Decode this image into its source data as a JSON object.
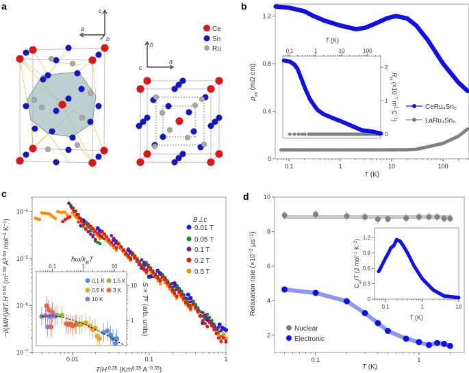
{
  "panels": {
    "a": "a",
    "b": "b",
    "c": "c",
    "d": "d"
  },
  "panel_a": {
    "legend": [
      {
        "label": "Ce",
        "color": "#e01515"
      },
      {
        "label": "Sn",
        "color": "#1515c8"
      },
      {
        "label": "Ru",
        "color": "#a8a8a8"
      }
    ],
    "axes_left": {
      "c": "c",
      "a": "a",
      "b": "b"
    },
    "axes_right": {
      "b": "b",
      "a": "a",
      "c": "c"
    }
  },
  "chart_data": [
    {
      "panel": "b",
      "type": "line",
      "xscale": "log",
      "xlim": [
        0.054,
        320
      ],
      "ylim": [
        0,
        1.3
      ],
      "xticks": [
        0.1,
        1,
        10,
        100
      ],
      "xticklabels": [
        "0.1",
        "1",
        "10",
        "100"
      ],
      "yticks": [
        0,
        0.4,
        0.8,
        1.2
      ],
      "yticklabels": [
        "0",
        "0.4",
        "0.8",
        "1.2"
      ],
      "xlabel": [
        [
          "T",
          "i"
        ],
        [
          " (K)",
          ""
        ]
      ],
      "ylabel": [
        [
          "ρ",
          "i"
        ],
        [
          "xx",
          "isub"
        ],
        [
          " (mΩ cm)",
          ""
        ]
      ],
      "legend_position": "right",
      "series": [
        {
          "name": "CeRu₄Sn₆",
          "color": "#1010e6",
          "x": [
            0.055,
            0.1,
            0.2,
            0.3,
            0.5,
            1,
            2,
            3,
            5,
            8,
            12,
            20,
            30,
            50,
            100,
            200,
            300
          ],
          "y": [
            1.28,
            1.27,
            1.24,
            1.2,
            1.16,
            1.12,
            1.09,
            1.1,
            1.14,
            1.18,
            1.2,
            1.18,
            1.12,
            1.0,
            0.8,
            0.64,
            0.57
          ]
        },
        {
          "name": "LaRu₄Sn₆",
          "color": "#808080",
          "x": [
            0.07,
            0.5,
            5,
            20,
            30,
            50,
            100,
            200,
            300
          ],
          "y": [
            0.075,
            0.075,
            0.075,
            0.076,
            0.08,
            0.1,
            0.13,
            0.19,
            0.25
          ]
        }
      ],
      "inset": {
        "type": "line",
        "xscale": "log",
        "xlim": [
          0.054,
          320
        ],
        "ylim": [
          -0.12,
          2.33
        ],
        "xticks": [
          0.1,
          1,
          10,
          100
        ],
        "xticklabels": [
          "0.1",
          "1",
          "10",
          "100"
        ],
        "yticks": [
          0,
          1,
          2
        ],
        "yticklabels": [
          "0",
          "1",
          "2"
        ],
        "xlabel": [
          [
            "T",
            "i"
          ],
          [
            " (K)",
            ""
          ]
        ],
        "ylabel": [
          [
            "R",
            "i"
          ],
          [
            "H",
            "isub"
          ],
          [
            " (×10",
            ""
          ],
          [
            "−7",
            "sup"
          ],
          [
            " m",
            ""
          ],
          [
            "3",
            "sup"
          ],
          [
            " C",
            ""
          ],
          [
            "−1",
            "sup"
          ],
          [
            ")",
            ""
          ]
        ],
        "series": [
          {
            "name": "CeRu₄Sn₆",
            "color": "#1010e6",
            "x": [
              0.06,
              0.1,
              0.15,
              0.2,
              0.3,
              0.4,
              0.6,
              0.8,
              1.2,
              2,
              4,
              10,
              30,
              60,
              150,
              320
            ],
            "y": [
              2.2,
              2.17,
              2.08,
              1.95,
              1.6,
              1.35,
              1.05,
              0.9,
              0.72,
              0.6,
              0.5,
              0.38,
              0.22,
              0.12,
              0.08,
              0.02
            ]
          },
          {
            "name": "LaRu₄Sn₆",
            "color": "#808080",
            "x": [
              0.1,
              0.15,
              0.22,
              0.3,
              0.38,
              0.55,
              1,
              3,
              10,
              30,
              100,
              320
            ],
            "y": [
              0,
              0,
              0,
              0,
              0,
              0,
              0,
              0,
              0,
              0,
              0,
              0
            ]
          }
        ]
      }
    },
    {
      "panel": "c",
      "type": "scatter",
      "xscale": "log",
      "yscale": "log",
      "xlim": [
        0.003,
        1.0
      ],
      "ylim": [
        1e-07,
        0.000205
      ],
      "xticks": [
        0.01,
        0.1,
        1
      ],
      "xticklabels": [
        "0.01",
        "0.1",
        "1"
      ],
      "yticks": [
        1e-07,
        1e-06,
        1e-05,
        0.0001
      ],
      "yticklabels": [
        [
          "10",
          "−7"
        ],
        [
          "10",
          "−6"
        ],
        [
          "10",
          "−5"
        ],
        [
          "10",
          "−4"
        ]
      ],
      "xlabel": [
        [
          "T",
          "i"
        ],
        [
          "/",
          ""
        ],
        [
          "H",
          "i"
        ],
        [
          " 0.35",
          "sup"
        ],
        [
          " (Km",
          ""
        ],
        [
          "0.35",
          "sup"
        ],
        [
          " A",
          ""
        ],
        [
          "−0.35",
          "sup"
        ],
        [
          ")",
          ""
        ]
      ],
      "ylabel": [
        [
          "−∂(",
          ""
        ],
        [
          "M",
          "i"
        ],
        [
          "/",
          ""
        ],
        [
          "H",
          "i"
        ],
        [
          ")/∂",
          ""
        ],
        [
          "T",
          "i"
        ],
        [
          ".",
          ""
        ],
        [
          "H",
          "i"
        ],
        [
          " 0.50",
          "sup"
        ],
        [
          " (m",
          ""
        ],
        [
          "2.50",
          "sup"
        ],
        [
          " A",
          ""
        ],
        [
          "0.50",
          "sup"
        ],
        [
          " mol",
          ""
        ],
        [
          "−1",
          "sup"
        ],
        [
          " K",
          ""
        ],
        [
          "−1",
          "sup"
        ],
        [
          ")",
          ""
        ]
      ],
      "legend_title": "B⊥c",
      "legend_position": "top-right",
      "series": [
        {
          "name": "0.01 T",
          "color": "#1020e8",
          "x": [
            0.013,
            0.02,
            0.03,
            0.05,
            0.08,
            0.1,
            0.12,
            0.2,
            0.3,
            0.4,
            0.5,
            0.7,
            0.9,
            1.0
          ],
          "y": [
            6e-05,
            4e-05,
            2.5e-05,
            1.4e-05,
            7.5e-06,
            4e-06,
            5e-06,
            2.8e-06,
            1.6e-06,
            1e-06,
            5e-07,
            4e-07,
            3e-07,
            3e-07
          ]
        },
        {
          "name": "0.05 T",
          "color": "#1a8a2a",
          "x": [
            0.0095,
            0.012,
            0.014,
            0.02,
            0.03,
            0.05,
            0.08,
            0.12,
            0.2,
            0.3,
            0.5,
            0.8,
            1.0
          ],
          "y": [
            0.00012,
            9e-05,
            5.5e-05,
            2.5e-05,
            2.4e-05,
            1.4e-05,
            8e-06,
            5e-06,
            2.6e-06,
            1.4e-06,
            6.5e-07,
            3e-07,
            1.7e-07
          ]
        },
        {
          "name": "0.1 T",
          "color": "#7a1a8a",
          "x": [
            0.009,
            0.012,
            0.015,
            0.02,
            0.03,
            0.05,
            0.08,
            0.12,
            0.2,
            0.3,
            0.5,
            0.8,
            1.0
          ],
          "y": [
            0.00014,
            7e-05,
            4e-05,
            3e-05,
            2.8e-05,
            1.5e-05,
            8e-06,
            5e-06,
            2.5e-06,
            1.3e-06,
            6e-07,
            3e-07,
            2e-07
          ]
        },
        {
          "name": "0.2 T",
          "color": "#ee1111",
          "x": [
            0.0075,
            0.01,
            0.015,
            0.02,
            0.03,
            0.05,
            0.08,
            0.12,
            0.2,
            0.3,
            0.5,
            0.8,
            1.0
          ],
          "y": [
            6e-05,
            0.0001,
            5e-05,
            4e-05,
            2.5e-05,
            1.3e-05,
            7e-06,
            4.5e-06,
            2.2e-06,
            1.2e-06,
            5e-07,
            2.2e-07,
            1.5e-07
          ]
        },
        {
          "name": "0.5 T",
          "color": "#ff8c00",
          "x": [
            0.0033,
            0.004,
            0.005,
            0.006,
            0.007,
            0.008,
            0.01,
            0.013,
            0.02,
            0.03,
            0.05,
            0.08,
            0.1,
            0.15,
            0.2,
            0.3,
            0.5,
            0.7,
            1.0
          ],
          "y": [
            7.5e-05,
            8e-05,
            9e-05,
            8.5e-05,
            9e-05,
            0.0001,
            8e-05,
            6e-05,
            3.5e-05,
            2.2e-05,
            1.2e-05,
            7e-06,
            5e-06,
            3e-06,
            2e-06,
            1.1e-06,
            5e-07,
            3e-07,
            1.8e-07
          ]
        }
      ],
      "inset": {
        "type": "scatter",
        "xscale": "log",
        "yscale": "log",
        "xlim": [
          0.03,
          25
        ],
        "ylim": [
          0.19,
          24.6
        ],
        "xticks": [
          0.1,
          1,
          10
        ],
        "xticklabels": [
          "0.1",
          "1",
          "10"
        ],
        "yticks": [
          1,
          10
        ],
        "yticklabels": [
          "1",
          "10"
        ],
        "xlabel": [
          [
            "ħω",
            "i"
          ],
          [
            "/",
            "i"
          ],
          [
            "k",
            "i"
          ],
          [
            "B",
            "isub"
          ],
          [
            "T",
            "i"
          ]
        ],
        "ylabel": [
          [
            "S",
            "i"
          ],
          [
            " × ",
            ""
          ],
          [
            "T",
            "i"
          ],
          [
            "α",
            "isup"
          ],
          [
            " (arb. units)",
            ""
          ]
        ],
        "fit": {
          "style": "dashed",
          "x": [
            0.045,
            0.1,
            0.2,
            0.5,
            1,
            2,
            5,
            10,
            20
          ],
          "y": [
            1.3,
            1.35,
            1.25,
            1.0,
            0.8,
            0.6,
            0.4,
            0.28,
            0.2
          ]
        },
        "series": [
          {
            "name": "0.1 K",
            "color": "#5b8ccf",
            "x": [
              4.5,
              6,
              7.5,
              9,
              11,
              12
            ],
            "y": [
              0.45,
              0.5,
              0.38,
              0.3,
              0.22,
              0.3
            ]
          },
          {
            "name": "1.5 K",
            "color": "#8cba3c",
            "x": [
              0.14,
              0.2,
              0.6,
              0.75
            ],
            "y": [
              1.4,
              1.4,
              0.8,
              0.75
            ]
          },
          {
            "name": "0.5 K",
            "color": "#e5a92a",
            "x": [
              0.9,
              1.2,
              1.6,
              2,
              2.4,
              2.8,
              3.3
            ],
            "y": [
              0.8,
              0.85,
              0.7,
              0.55,
              0.6,
              0.35,
              0.3
            ]
          },
          {
            "name": "3 K",
            "color": "#e8643c",
            "x": [
              0.065,
              0.075,
              0.09,
              0.1,
              0.28,
              0.32,
              0.38,
              0.45,
              0.55
            ],
            "y": [
              2.6,
              2.0,
              0.65,
              1.7,
              0.8,
              0.75,
              0.8,
              0.7,
              0.75
            ]
          },
          {
            "name": "10 K",
            "color": "#8e7cc3",
            "x": [
              0.045,
              0.06,
              0.07,
              0.08,
              0.095,
              0.12
            ],
            "y": [
              1.3,
              1.35,
              0.65,
              1.3,
              1.35,
              1.3
            ]
          }
        ]
      }
    },
    {
      "panel": "d",
      "type": "scatter",
      "xscale": "log",
      "xlim": [
        0.04,
        2.74
      ],
      "ylim": [
        1,
        10
      ],
      "xticks": [
        0.1,
        1
      ],
      "xticklabels": [
        "0.1",
        "1"
      ],
      "yticks": [
        2,
        4,
        6,
        8,
        10
      ],
      "yticklabels": [
        "2",
        "4",
        "6",
        "8",
        "10"
      ],
      "xlabel": [
        [
          "T",
          "i"
        ],
        [
          " (K)",
          ""
        ]
      ],
      "ylabel": [
        [
          "Relaxation rate (×10",
          ""
        ],
        [
          "−2",
          "sup"
        ],
        [
          " μs",
          ""
        ],
        [
          "−1",
          "sup"
        ],
        [
          ")",
          ""
        ]
      ],
      "legend_position": "bottom-left",
      "series": [
        {
          "name": "Nuclear",
          "color": "#808080",
          "x": [
            0.05,
            0.1,
            0.2,
            0.3,
            0.4,
            0.5,
            0.75,
            1,
            1.25,
            1.5,
            1.75,
            2
          ],
          "y": [
            8.95,
            9.0,
            8.9,
            8.85,
            8.72,
            8.73,
            8.78,
            8.85,
            8.85,
            8.85,
            8.75,
            8.75
          ],
          "fit_color": "#c8c8c8"
        },
        {
          "name": "Electronic",
          "color": "#1010e6",
          "x": [
            0.05,
            0.1,
            0.2,
            0.3,
            0.4,
            0.5,
            0.75,
            1,
            1.25,
            1.5,
            1.75,
            2
          ],
          "y": [
            4.65,
            4.45,
            3.97,
            3.28,
            2.7,
            2.25,
            1.8,
            1.6,
            1.43,
            1.55,
            1.5,
            1.38
          ],
          "fit_color": "#8d96f2"
        }
      ],
      "inset": {
        "type": "scatter",
        "xscale": "log",
        "xlim": [
          0.05,
          10
        ],
        "ylim": [
          0,
          1.39
        ],
        "xticks": [
          0.1,
          1,
          10
        ],
        "xticklabels": [
          "0.1",
          "1",
          "10"
        ],
        "yticks": [
          0,
          0.3,
          0.6,
          0.9,
          1.2
        ],
        "yticklabels": [
          "0",
          "0.3",
          "0.6",
          "0.9",
          "1.2"
        ],
        "xlabel": [
          [
            "T",
            "i"
          ],
          [
            " (K)",
            ""
          ]
        ],
        "ylabel": [
          [
            "C",
            ""
          ],
          [
            "el",
            "sub"
          ],
          [
            "/",
            ""
          ],
          [
            "T",
            "i"
          ],
          [
            " (J mol",
            ""
          ],
          [
            "−1",
            "sup"
          ],
          [
            " K",
            ""
          ],
          [
            "−2",
            "sup"
          ],
          [
            ")",
            ""
          ]
        ],
        "series": [
          {
            "name": "",
            "color": "#1010e6",
            "x": [
              0.065,
              0.075,
              0.085,
              0.1,
              0.12,
              0.14,
              0.17,
              0.2,
              0.25,
              0.3,
              0.4,
              0.6,
              1,
              2,
              4,
              10
            ],
            "y": [
              0.54,
              0.62,
              0.7,
              0.8,
              0.9,
              1.0,
              1.05,
              1.16,
              1.13,
              1.05,
              0.9,
              0.65,
              0.4,
              0.18,
              0.06,
              0.03
            ]
          }
        ]
      }
    }
  ]
}
